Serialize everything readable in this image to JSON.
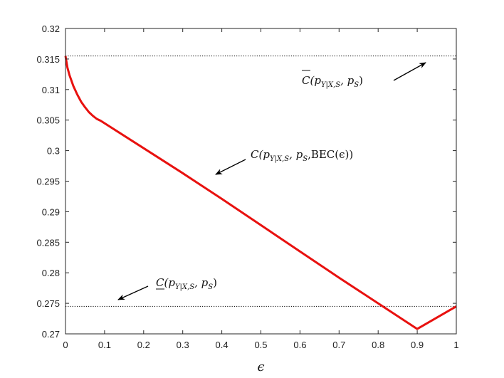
{
  "chart_data": {
    "type": "line",
    "xlabel": "ϵ",
    "ylabel": "",
    "title": "",
    "xlim": [
      0,
      1
    ],
    "ylim": [
      0.27,
      0.32
    ],
    "x_ticks": [
      "0",
      "0.1",
      "0.2",
      "0.3",
      "0.4",
      "0.5",
      "0.6",
      "0.7",
      "0.8",
      "0.9",
      "1"
    ],
    "y_ticks": [
      "0.27",
      "0.275",
      "0.28",
      "0.285",
      "0.29",
      "0.295",
      "0.3",
      "0.305",
      "0.31",
      "0.315",
      "0.32"
    ],
    "grid": false,
    "series": [
      {
        "x": [
          0,
          0.005,
          0.01,
          0.02,
          0.03,
          0.04,
          0.05,
          0.06,
          0.07,
          0.08,
          0.09,
          0.2,
          0.3,
          0.4,
          0.5,
          0.6,
          0.7,
          0.8,
          0.9,
          1.0
        ],
        "values": [
          0.3155,
          0.3136,
          0.3124,
          0.3106,
          0.3092,
          0.308,
          0.3071,
          0.3063,
          0.3057,
          0.3052,
          0.3049,
          0.3004,
          0.2963,
          0.2921,
          0.2878,
          0.2835,
          0.2792,
          0.275,
          0.2708,
          0.2745
        ],
        "color": "#e8110f",
        "style": "solid"
      }
    ],
    "reference_lines": [
      {
        "y": 0.3155,
        "style": "dotted",
        "color": "#000000"
      },
      {
        "y": 0.2745,
        "style": "dotted",
        "color": "#000000"
      }
    ],
    "annotations": [
      {
        "text": "C(p_{Y|X,S}, p_S, BEC(ϵ))",
        "label_parts": [
          "C(p",
          "Y|X,S",
          ", p",
          "S",
          ",BEC(ϵ))"
        ]
      },
      {
        "text": "C̄(p_{Y|X,S}, p_S)",
        "label_parts": [
          "C",
          "(p",
          "Y|X,S",
          ", p",
          "S",
          ")"
        ]
      },
      {
        "text": "C̲(p_{Y|X,S}, p_S)",
        "label_parts": [
          "C",
          "(p",
          "Y|X,S",
          ", p",
          "S",
          ")"
        ]
      }
    ]
  }
}
